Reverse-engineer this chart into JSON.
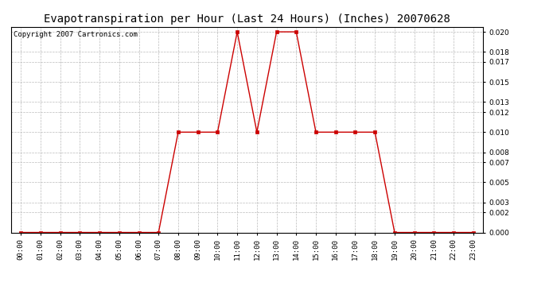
{
  "title": "Evapotranspiration per Hour (Last 24 Hours) (Inches) 20070628",
  "copyright": "Copyright 2007 Cartronics.com",
  "hours": [
    "00:00",
    "01:00",
    "02:00",
    "03:00",
    "04:00",
    "05:00",
    "06:00",
    "07:00",
    "08:00",
    "09:00",
    "10:00",
    "11:00",
    "12:00",
    "13:00",
    "14:00",
    "15:00",
    "16:00",
    "17:00",
    "18:00",
    "19:00",
    "20:00",
    "21:00",
    "22:00",
    "23:00"
  ],
  "values": [
    0.0,
    0.0,
    0.0,
    0.0,
    0.0,
    0.0,
    0.0,
    0.0,
    0.01,
    0.01,
    0.01,
    0.02,
    0.01,
    0.02,
    0.02,
    0.01,
    0.01,
    0.01,
    0.01,
    0.0,
    0.0,
    0.0,
    0.0,
    0.0
  ],
  "line_color": "#cc0000",
  "marker": "s",
  "marker_size": 2.5,
  "background_color": "#ffffff",
  "grid_color": "#bbbbbb",
  "ylim": [
    0.0,
    0.0205
  ],
  "yticks": [
    0.0,
    0.002,
    0.003,
    0.005,
    0.007,
    0.008,
    0.01,
    0.012,
    0.013,
    0.015,
    0.017,
    0.018,
    0.02
  ],
  "title_fontsize": 10,
  "copyright_fontsize": 6.5,
  "tick_fontsize": 6.5,
  "linewidth": 1.0
}
